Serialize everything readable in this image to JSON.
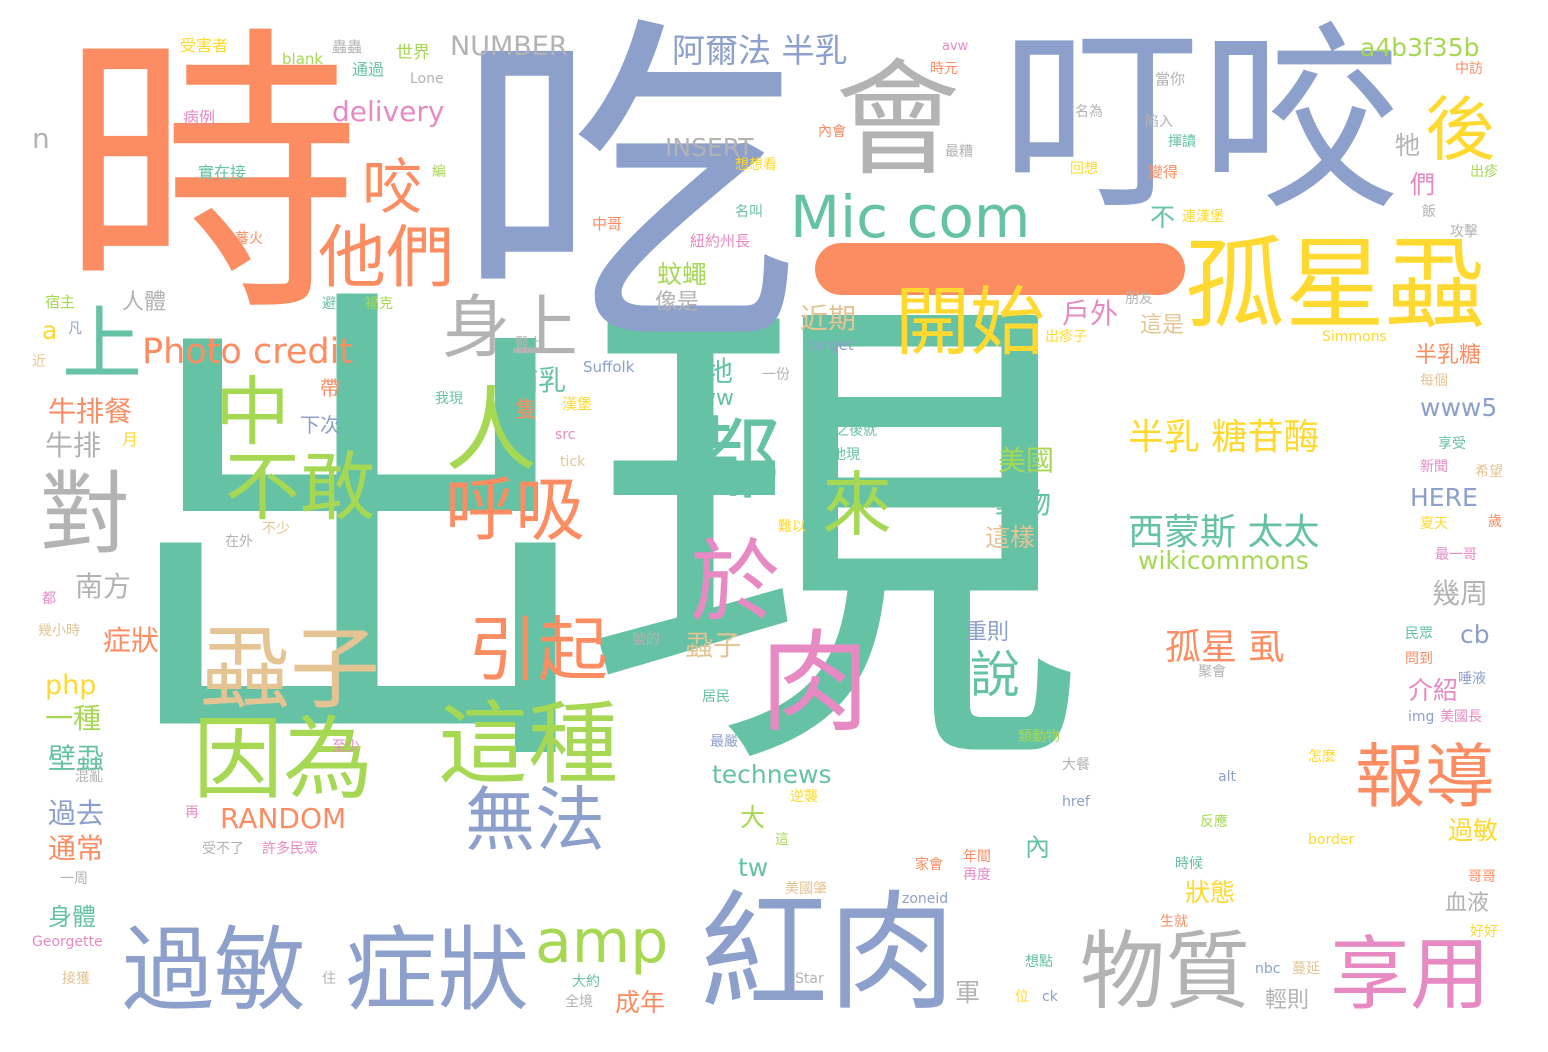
{
  "palette": {
    "teal": "#66c2a5",
    "orange": "#fc8d62",
    "blue": "#8da0cb",
    "pink": "#e78ac3",
    "green": "#a6d854",
    "yellow": "#ffd92f",
    "tan": "#e5c494",
    "gray": "#b3b3b3"
  },
  "words": [
    {
      "text": "出現"
    },
    {
      "text": "吃"
    },
    {
      "text": "時"
    },
    {
      "text": "叮咬"
    },
    {
      "text": "會"
    },
    {
      "text": "紅肉"
    },
    {
      "text": "過敏"
    },
    {
      "text": "症狀"
    },
    {
      "text": "孤星蝨"
    },
    {
      "text": "物質"
    },
    {
      "text": "享用"
    },
    {
      "text": "這種"
    },
    {
      "text": "因為"
    },
    {
      "text": "蝨子"
    },
    {
      "text": "肉"
    },
    {
      "text": "不敢"
    },
    {
      "text": "中"
    },
    {
      "text": "人"
    },
    {
      "text": "都"
    },
    {
      "text": "對"
    },
    {
      "text": "開始"
    },
    {
      "text": "Mic com"
    },
    {
      "text": "他們"
    },
    {
      "text": "身上"
    },
    {
      "text": "咬"
    },
    {
      "text": "後"
    },
    {
      "text": "上"
    },
    {
      "text": "Photo credit"
    },
    {
      "text": "呼吸"
    },
    {
      "text": "來"
    },
    {
      "text": "於"
    },
    {
      "text": "引起"
    },
    {
      "text": "無法"
    },
    {
      "text": "amp"
    },
    {
      "text": "報導"
    },
    {
      "text": "說"
    },
    {
      "text": "半乳 糖苷酶"
    },
    {
      "text": "西蒙斯 太太"
    },
    {
      "text": "wikicommons"
    },
    {
      "text": "孤星 虱"
    },
    {
      "text": "阿爾法 半乳"
    },
    {
      "text": "a4b3f35b"
    },
    {
      "text": "NUMBER"
    },
    {
      "text": "delivery"
    },
    {
      "text": "INSERT"
    },
    {
      "text": "RANDOM"
    },
    {
      "text": "technews"
    },
    {
      "text": "牛排餐"
    },
    {
      "text": "牛排"
    },
    {
      "text": "南方"
    },
    {
      "text": "症狀"
    },
    {
      "text": "php"
    },
    {
      "text": "一種"
    },
    {
      "text": "壁蝨"
    },
    {
      "text": "過去"
    },
    {
      "text": "通常"
    },
    {
      "text": "身體"
    },
    {
      "text": "哺乳"
    },
    {
      "text": "隻"
    },
    {
      "text": "蝨子"
    },
    {
      "text": "戶外"
    },
    {
      "text": "近期"
    },
    {
      "text": "蚊蠅"
    },
    {
      "text": "當地"
    },
    {
      "text": "www"
    },
    {
      "text": "美國"
    },
    {
      "text": "動物"
    },
    {
      "text": "這樣"
    },
    {
      "text": "重則"
    },
    {
      "text": "狀態"
    },
    {
      "text": "幾周"
    },
    {
      "text": "cb"
    },
    {
      "text": "www5"
    },
    {
      "text": "HERE"
    },
    {
      "text": "半乳糖"
    },
    {
      "text": "介紹"
    },
    {
      "text": "過敏"
    },
    {
      "text": "血液"
    },
    {
      "text": "成年"
    },
    {
      "text": "軍"
    },
    {
      "text": "輕則"
    },
    {
      "text": "tw"
    },
    {
      "text": "大"
    },
    {
      "text": "內"
    },
    {
      "text": "不"
    },
    {
      "text": "們"
    },
    {
      "text": "牠"
    },
    {
      "text": "n"
    },
    {
      "text": "a"
    },
    {
      "text": "人體"
    },
    {
      "text": "像是"
    },
    {
      "text": "這是"
    },
    {
      "text": "下次"
    },
    {
      "text": "帶"
    },
    {
      "text": "月"
    },
    {
      "text": "受害者"
    },
    {
      "text": "blank"
    },
    {
      "text": "蟲蟲"
    },
    {
      "text": "世界"
    },
    {
      "text": "通過"
    },
    {
      "text": "Lone"
    },
    {
      "text": "病例"
    },
    {
      "text": "實在接"
    },
    {
      "text": "編"
    },
    {
      "text": "想想看"
    },
    {
      "text": "名叫"
    },
    {
      "text": "中哥"
    },
    {
      "text": "紐約州長"
    },
    {
      "text": "連漢堡"
    },
    {
      "text": "朋友"
    },
    {
      "text": "Simmons"
    },
    {
      "text": "target"
    },
    {
      "text": "Suffolk"
    },
    {
      "text": "一份"
    },
    {
      "text": "之後就"
    },
    {
      "text": "當地現"
    },
    {
      "text": "難以"
    },
    {
      "text": "src"
    },
    {
      "text": "tick"
    },
    {
      "text": "漢堡"
    },
    {
      "text": "我現"
    },
    {
      "text": "在外"
    },
    {
      "text": "不少"
    },
    {
      "text": "宿主"
    },
    {
      "text": "凡"
    },
    {
      "text": "近"
    },
    {
      "text": "避開"
    },
    {
      "text": "福克"
    },
    {
      "text": "醫上"
    },
    {
      "text": "出疹子"
    },
    {
      "text": "居民"
    },
    {
      "text": "號的"
    },
    {
      "text": "最嚴"
    },
    {
      "text": "類動物"
    },
    {
      "text": "大餐"
    },
    {
      "text": "至少"
    },
    {
      "text": "混亂"
    },
    {
      "text": "再"
    },
    {
      "text": "受不了"
    },
    {
      "text": "許多民眾"
    },
    {
      "text": "逆襲"
    },
    {
      "text": "這"
    },
    {
      "text": "年間"
    },
    {
      "text": "再度"
    },
    {
      "text": "家會"
    },
    {
      "text": "美國肇"
    },
    {
      "text": "zoneid"
    },
    {
      "text": "Star"
    },
    {
      "text": "想點"
    },
    {
      "text": "位"
    },
    {
      "text": "ck"
    },
    {
      "text": "nbc"
    },
    {
      "text": "蔓延"
    },
    {
      "text": "大約"
    },
    {
      "text": "全境"
    },
    {
      "text": "住"
    },
    {
      "text": "Georgette"
    },
    {
      "text": "接獲"
    },
    {
      "text": "一周"
    },
    {
      "text": "都"
    },
    {
      "text": "幾小時"
    },
    {
      "text": "href"
    },
    {
      "text": "alt"
    },
    {
      "text": "border"
    },
    {
      "text": "時候"
    },
    {
      "text": "生就"
    },
    {
      "text": "反應"
    },
    {
      "text": "怎麼"
    },
    {
      "text": "img"
    },
    {
      "text": "美國長"
    },
    {
      "text": "問到"
    },
    {
      "text": "民眾"
    },
    {
      "text": "唾液"
    },
    {
      "text": "聚會"
    },
    {
      "text": "哥哥"
    },
    {
      "text": "好好"
    },
    {
      "text": "最一哥"
    },
    {
      "text": "夏天"
    },
    {
      "text": "新聞"
    },
    {
      "text": "希望"
    },
    {
      "text": "享受"
    },
    {
      "text": "歲"
    },
    {
      "text": "每個"
    },
    {
      "text": "飯"
    },
    {
      "text": "攻擊"
    },
    {
      "text": "出疹"
    },
    {
      "text": "中訪"
    },
    {
      "text": "當你"
    },
    {
      "text": "陷入"
    },
    {
      "text": "揮讀"
    },
    {
      "text": "變得"
    },
    {
      "text": "名為"
    },
    {
      "text": "回想"
    },
    {
      "text": "最糟"
    },
    {
      "text": "時元"
    },
    {
      "text": "avw"
    },
    {
      "text": "內會"
    },
    {
      "text": "蕃火"
    }
  ]
}
